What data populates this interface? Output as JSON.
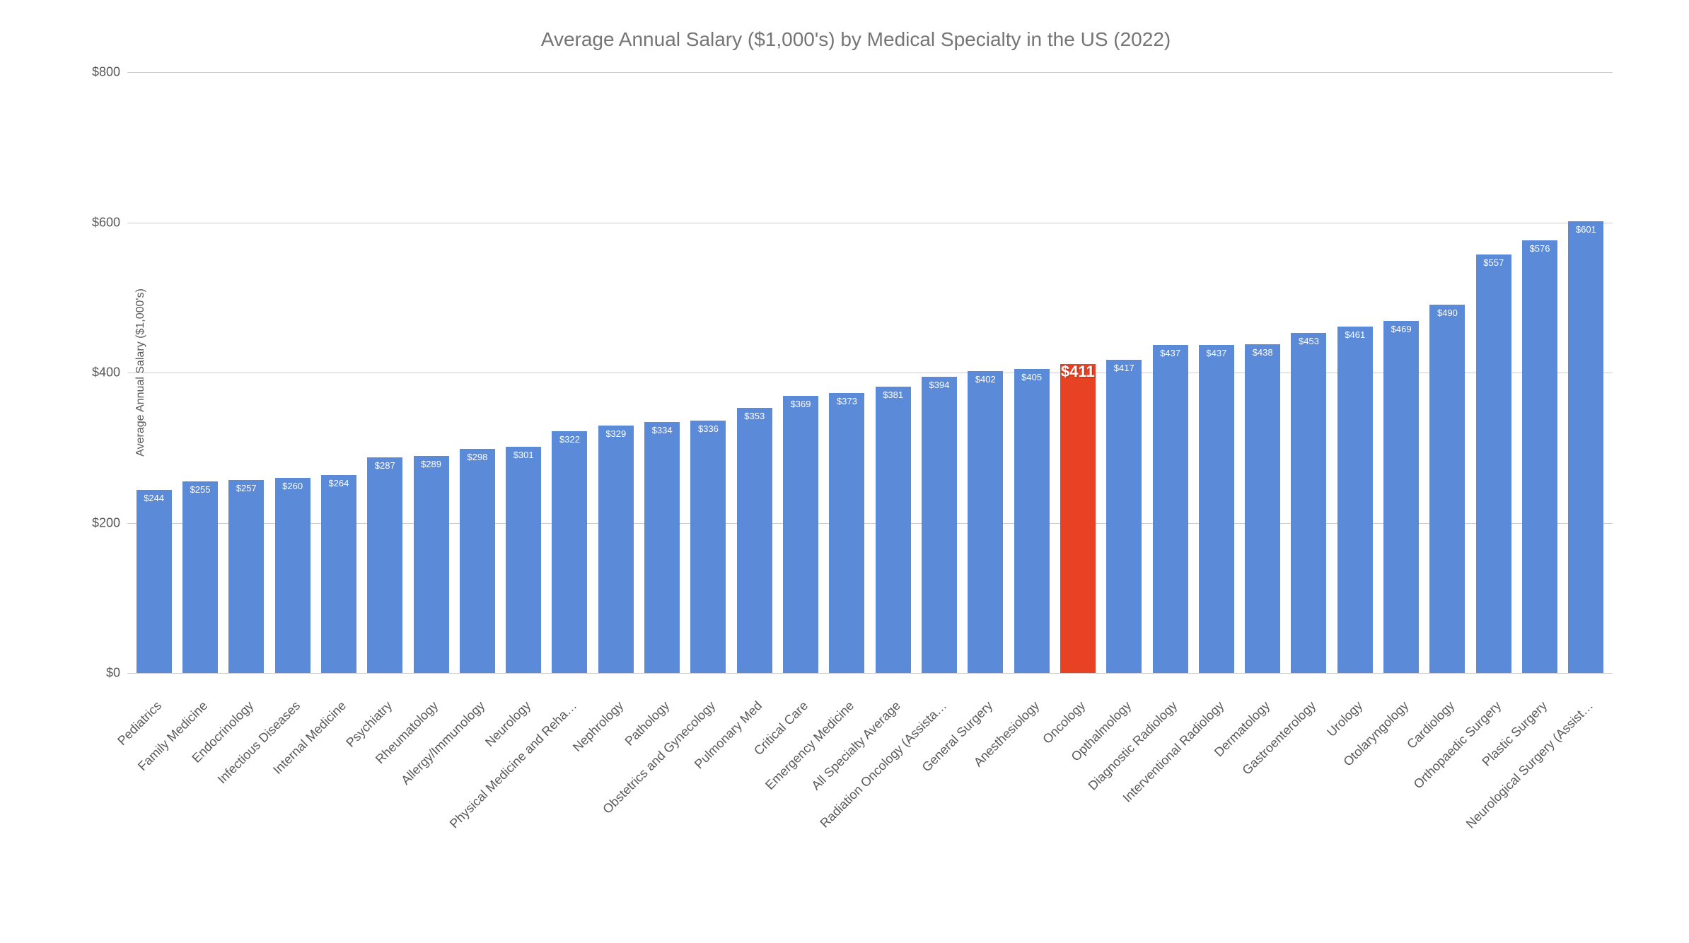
{
  "chart": {
    "type": "bar",
    "title": "Average Annual Salary ($1,000's) by Medical Specialty in the US (2022)",
    "title_fontsize": 28,
    "title_color": "#757575",
    "y_axis_label": "Average Annual Salary ($1,000's)",
    "y_axis_label_fontsize": 16,
    "y_axis_label_color": "#595959",
    "ylim": [
      0,
      800
    ],
    "ytick_step": 200,
    "y_ticks": [
      0,
      200,
      400,
      600,
      800
    ],
    "y_tick_labels": [
      "$0",
      "$200",
      "$400",
      "$600",
      "$800"
    ],
    "y_tick_fontsize": 18,
    "y_tick_color": "#595959",
    "grid_color": "#cccccc",
    "background_color": "#ffffff",
    "default_bar_color": "#5a8ad8",
    "highlight_bar_color": "#e74224",
    "value_label_color": "#ffffff",
    "value_label_fontsize": 13,
    "highlight_value_fontsize": 22,
    "x_label_fontsize": 18,
    "x_label_color": "#595959",
    "x_label_rotation": -45,
    "data": [
      {
        "category": "Pediatrics",
        "value": 244,
        "label": "$244",
        "highlighted": false
      },
      {
        "category": "Family Medicine",
        "value": 255,
        "label": "$255",
        "highlighted": false
      },
      {
        "category": "Endocrinology",
        "value": 257,
        "label": "$257",
        "highlighted": false
      },
      {
        "category": "Infectious Diseases",
        "value": 260,
        "label": "$260",
        "highlighted": false
      },
      {
        "category": "Internal Medicine",
        "value": 264,
        "label": "$264",
        "highlighted": false
      },
      {
        "category": "Psychiatry",
        "value": 287,
        "label": "$287",
        "highlighted": false
      },
      {
        "category": "Rheumatology",
        "value": 289,
        "label": "$289",
        "highlighted": false
      },
      {
        "category": "Allergy/Immunology",
        "value": 298,
        "label": "$298",
        "highlighted": false
      },
      {
        "category": "Neurology",
        "value": 301,
        "label": "$301",
        "highlighted": false
      },
      {
        "category": "Physical Medicine and Reha…",
        "value": 322,
        "label": "$322",
        "highlighted": false
      },
      {
        "category": "Nephrology",
        "value": 329,
        "label": "$329",
        "highlighted": false
      },
      {
        "category": "Pathology",
        "value": 334,
        "label": "$334",
        "highlighted": false
      },
      {
        "category": "Obstetrics and Gynecology",
        "value": 336,
        "label": "$336",
        "highlighted": false
      },
      {
        "category": "Pulmonary Med",
        "value": 353,
        "label": "$353",
        "highlighted": false
      },
      {
        "category": "Critical Care",
        "value": 369,
        "label": "$369",
        "highlighted": false
      },
      {
        "category": "Emergency Medicine",
        "value": 373,
        "label": "$373",
        "highlighted": false
      },
      {
        "category": "All Specialty Average",
        "value": 381,
        "label": "$381",
        "highlighted": false
      },
      {
        "category": "Radiation Oncology (Assista…",
        "value": 394,
        "label": "$394",
        "highlighted": false
      },
      {
        "category": "General Surgery",
        "value": 402,
        "label": "$402",
        "highlighted": false
      },
      {
        "category": "Anesthesiology",
        "value": 405,
        "label": "$405",
        "highlighted": false
      },
      {
        "category": "Oncology",
        "value": 411,
        "label": "$411",
        "highlighted": true
      },
      {
        "category": "Opthalmology",
        "value": 417,
        "label": "$417",
        "highlighted": false
      },
      {
        "category": "Diagnostic Radiology",
        "value": 437,
        "label": "$437",
        "highlighted": false
      },
      {
        "category": "Interventional Radiology",
        "value": 437,
        "label": "$437",
        "highlighted": false
      },
      {
        "category": "Dermatology",
        "value": 438,
        "label": "$438",
        "highlighted": false
      },
      {
        "category": "Gastroenterology",
        "value": 453,
        "label": "$453",
        "highlighted": false
      },
      {
        "category": "Urology",
        "value": 461,
        "label": "$461",
        "highlighted": false
      },
      {
        "category": "Otolaryngology",
        "value": 469,
        "label": "$469",
        "highlighted": false
      },
      {
        "category": "Cardiology",
        "value": 490,
        "label": "$490",
        "highlighted": false
      },
      {
        "category": "Orthopaedic Surgery",
        "value": 557,
        "label": "$557",
        "highlighted": false
      },
      {
        "category": "Plastic Surgery",
        "value": 576,
        "label": "$576",
        "highlighted": false
      },
      {
        "category": "Neurological Surgery (Assist…",
        "value": 601,
        "label": "$601",
        "highlighted": false
      }
    ]
  }
}
